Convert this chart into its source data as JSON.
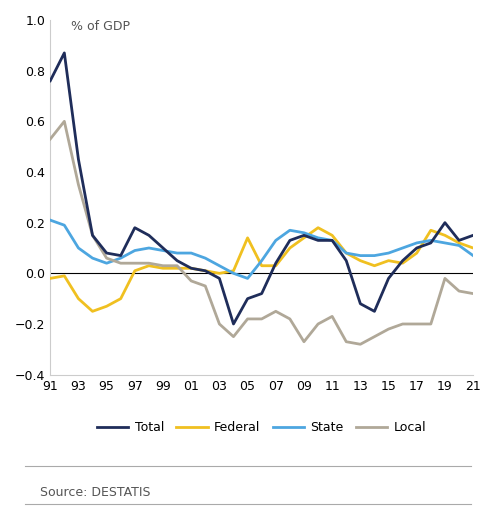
{
  "years": [
    1991,
    1992,
    1993,
    1994,
    1995,
    1996,
    1997,
    1998,
    1999,
    2000,
    2001,
    2002,
    2003,
    2004,
    2005,
    2006,
    2007,
    2008,
    2009,
    2010,
    2011,
    2012,
    2013,
    2014,
    2015,
    2016,
    2017,
    2018,
    2019,
    2020,
    2021
  ],
  "total": [
    0.76,
    0.87,
    0.45,
    0.15,
    0.08,
    0.07,
    0.18,
    0.15,
    0.1,
    0.05,
    0.02,
    0.01,
    -0.02,
    -0.2,
    -0.1,
    -0.08,
    0.04,
    0.13,
    0.15,
    0.13,
    0.13,
    0.05,
    -0.12,
    -0.15,
    -0.02,
    0.05,
    0.1,
    0.12,
    0.2,
    0.13,
    0.15
  ],
  "federal": [
    -0.02,
    -0.01,
    -0.1,
    -0.15,
    -0.13,
    -0.1,
    0.01,
    0.03,
    0.02,
    0.02,
    0.02,
    0.01,
    0.0,
    0.01,
    0.14,
    0.03,
    0.03,
    0.1,
    0.14,
    0.18,
    0.15,
    0.08,
    0.05,
    0.03,
    0.05,
    0.04,
    0.08,
    0.17,
    0.15,
    0.12,
    0.1
  ],
  "state": [
    0.21,
    0.19,
    0.1,
    0.06,
    0.04,
    0.06,
    0.09,
    0.1,
    0.09,
    0.08,
    0.08,
    0.06,
    0.03,
    0.0,
    -0.02,
    0.05,
    0.13,
    0.17,
    0.16,
    0.14,
    0.13,
    0.08,
    0.07,
    0.07,
    0.08,
    0.1,
    0.12,
    0.13,
    0.12,
    0.11,
    0.07
  ],
  "local": [
    0.53,
    0.6,
    0.35,
    0.15,
    0.06,
    0.04,
    0.04,
    0.04,
    0.03,
    0.03,
    -0.03,
    -0.05,
    -0.2,
    -0.25,
    -0.18,
    -0.18,
    -0.15,
    -0.18,
    -0.27,
    -0.2,
    -0.17,
    -0.27,
    -0.28,
    -0.25,
    -0.22,
    -0.2,
    -0.2,
    -0.2,
    -0.02,
    -0.07,
    -0.08
  ],
  "colors": {
    "total": "#1f2d5a",
    "federal": "#f0c020",
    "state": "#4da6e0",
    "local": "#b0a898"
  },
  "ylim": [
    -0.4,
    1.0
  ],
  "yticks": [
    -0.4,
    -0.2,
    0.0,
    0.2,
    0.4,
    0.6,
    0.8,
    1.0
  ],
  "xtick_years": [
    91,
    93,
    95,
    97,
    99,
    "01",
    "03",
    "05",
    "07",
    "09",
    11,
    13,
    15,
    17,
    19,
    21
  ],
  "ylabel_text": "% of GDP",
  "source_text": "Source: DESTATIS",
  "legend_labels": [
    "Total",
    "Federal",
    "State",
    "Local"
  ],
  "linewidth": 2.0
}
